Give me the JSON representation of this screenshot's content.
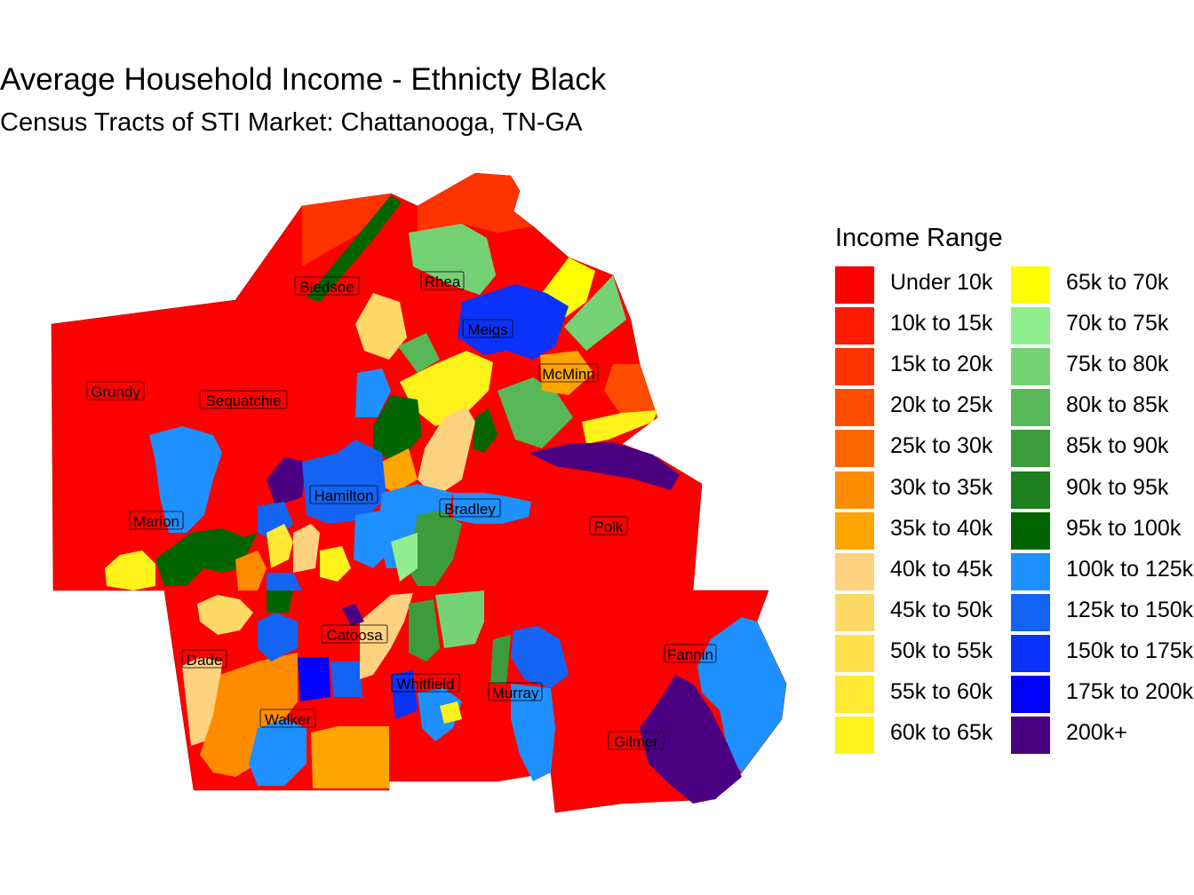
{
  "title": "Average Household Income - Ethnicty Black",
  "subtitle": "Census Tracts of STI Market: Chattanooga, TN-GA",
  "legend": {
    "title": "Income Range",
    "items": [
      {
        "label": "Under 10k",
        "color": "#ff0000"
      },
      {
        "label": "10k to 15k",
        "color": "#ff1a00"
      },
      {
        "label": "15k to 20k",
        "color": "#ff3300"
      },
      {
        "label": "20k to 25k",
        "color": "#ff4d00"
      },
      {
        "label": "25k to 30k",
        "color": "#ff6600"
      },
      {
        "label": "30k to 35k",
        "color": "#ff8c00"
      },
      {
        "label": "35k to 40k",
        "color": "#ffa500"
      },
      {
        "label": "40k to 45k",
        "color": "#ffd27f"
      },
      {
        "label": "45k to 50k",
        "color": "#ffd966"
      },
      {
        "label": "50k to 55k",
        "color": "#ffe14d"
      },
      {
        "label": "55k to 60k",
        "color": "#ffe933"
      },
      {
        "label": "60k to 65k",
        "color": "#fff21a"
      },
      {
        "label": "65k to 70k",
        "color": "#ffff00"
      },
      {
        "label": "70k to 75k",
        "color": "#90ee90"
      },
      {
        "label": "75k to 80k",
        "color": "#74d274"
      },
      {
        "label": "80k to 85k",
        "color": "#58b858"
      },
      {
        "label": "85k to 90k",
        "color": "#3c9c3c"
      },
      {
        "label": "90k to 95k",
        "color": "#1e7f1e"
      },
      {
        "label": "95k to 100k",
        "color": "#006400"
      },
      {
        "label": "100k to 125k",
        "color": "#1e90ff"
      },
      {
        "label": "125k to 150k",
        "color": "#1464f4"
      },
      {
        "label": "150k to 175k",
        "color": "#0a32fa"
      },
      {
        "label": "175k to 200k",
        "color": "#0000ff"
      },
      {
        "label": "200k+",
        "color": "#4b0082"
      }
    ]
  },
  "counties": [
    {
      "name": "Bledsoe"
    },
    {
      "name": "Rhea"
    },
    {
      "name": "Meigs"
    },
    {
      "name": "McMinn"
    },
    {
      "name": "Grundy"
    },
    {
      "name": "Sequatchie"
    },
    {
      "name": "Hamilton"
    },
    {
      "name": "Bradley"
    },
    {
      "name": "Marion"
    },
    {
      "name": "Polk"
    },
    {
      "name": "Catoosa"
    },
    {
      "name": "Dade"
    },
    {
      "name": "Fannin"
    },
    {
      "name": "Whitfield"
    },
    {
      "name": "Murray"
    },
    {
      "name": "Walker"
    },
    {
      "name": "Gilmer"
    }
  ]
}
